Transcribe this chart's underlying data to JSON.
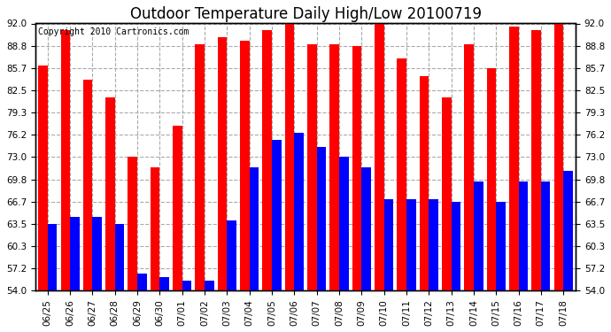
{
  "title": "Outdoor Temperature Daily High/Low 20100719",
  "copyright": "Copyright 2010 Cartronics.com",
  "dates": [
    "06/25",
    "06/26",
    "06/27",
    "06/28",
    "06/29",
    "06/30",
    "07/01",
    "07/02",
    "07/03",
    "07/04",
    "07/05",
    "07/06",
    "07/07",
    "07/08",
    "07/09",
    "07/10",
    "07/11",
    "07/12",
    "07/13",
    "07/14",
    "07/15",
    "07/16",
    "07/17",
    "07/18"
  ],
  "highs": [
    86.0,
    91.0,
    84.0,
    81.5,
    73.0,
    71.5,
    77.5,
    89.0,
    90.0,
    89.5,
    91.0,
    93.5,
    89.0,
    89.0,
    88.8,
    93.5,
    87.0,
    84.5,
    81.5,
    89.0,
    85.7,
    91.5,
    91.0,
    92.0
  ],
  "lows": [
    63.5,
    64.5,
    64.5,
    63.5,
    56.5,
    56.0,
    55.5,
    55.5,
    64.0,
    71.5,
    75.5,
    76.5,
    74.5,
    73.0,
    71.5,
    67.0,
    67.0,
    67.0,
    66.7,
    69.5,
    66.7,
    69.5,
    69.5,
    71.0
  ],
  "high_color": "#ff0000",
  "low_color": "#0000ff",
  "bg_color": "#ffffff",
  "plot_bg_color": "#ffffff",
  "grid_color": "#aaaaaa",
  "ymin": 54.0,
  "ymax": 92.0,
  "yticks": [
    54.0,
    57.2,
    60.3,
    63.5,
    66.7,
    69.8,
    73.0,
    76.2,
    79.3,
    82.5,
    85.7,
    88.8,
    92.0
  ],
  "title_fontsize": 12,
  "tick_fontsize": 7.5,
  "copyright_fontsize": 7
}
